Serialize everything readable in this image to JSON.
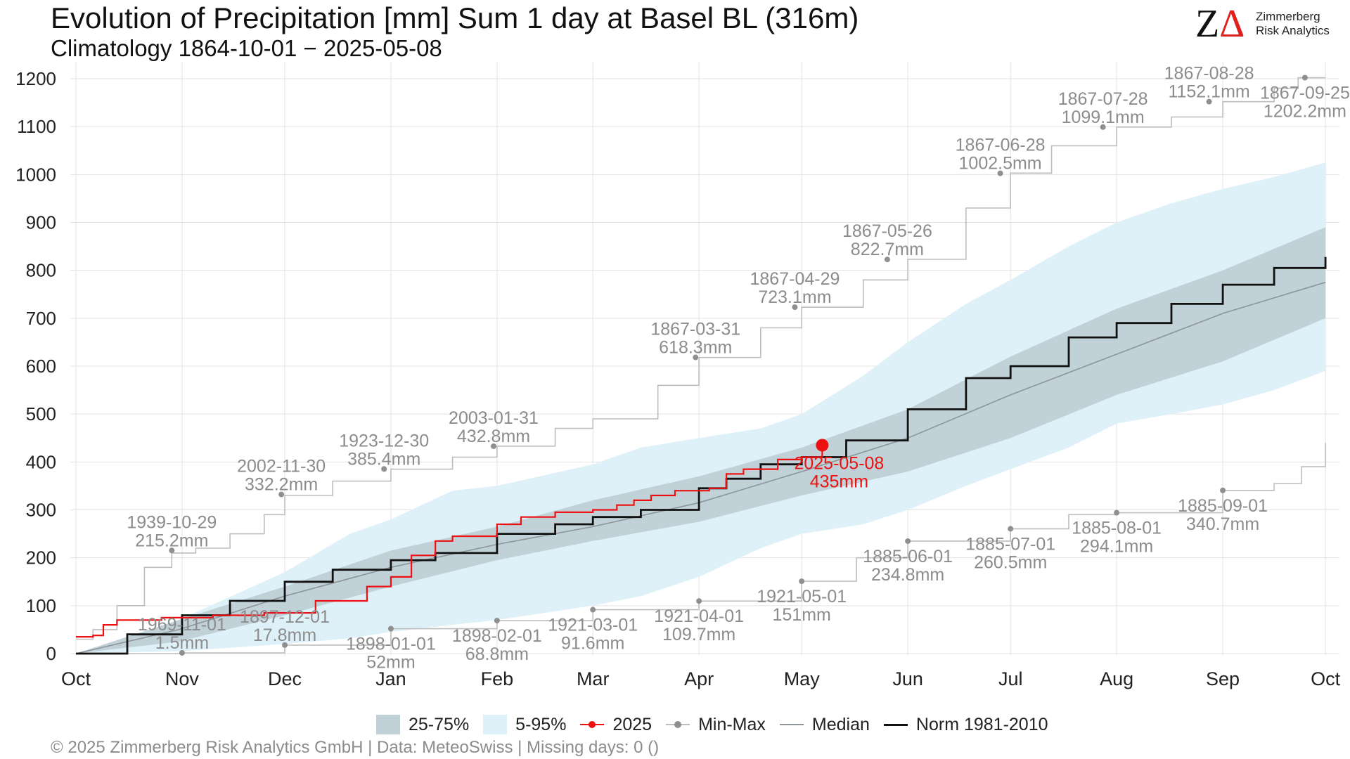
{
  "header": {
    "title": "Evolution of Precipitation [mm] Sum 1 day at Basel  BL (316m)",
    "subtitle": "Climatology 1864-10-01 − 2025-05-08"
  },
  "logo": {
    "mark_letter": "Z",
    "mark_delta": "Δ",
    "line1": "Zimmerberg",
    "line2": "Risk Analytics"
  },
  "colors": {
    "band_25_75": "#c1d1d8",
    "band_5_95": "#dff1f8",
    "current_year": "#ee1111",
    "minmax": "#bdbdbd",
    "minmax_marker": "#8f8f8f",
    "median": "#8d9599",
    "norm": "#111111",
    "label_gray": "#8c8c8c"
  },
  "legend": {
    "items": [
      {
        "label": "25-75%",
        "kind": "band1"
      },
      {
        "label": "5-95%",
        "kind": "band2"
      },
      {
        "label": "2025",
        "kind": "current"
      },
      {
        "label": "Min-Max",
        "kind": "minmax"
      },
      {
        "label": "Median",
        "kind": "median"
      },
      {
        "label": "Norm 1981-2010",
        "kind": "norm"
      }
    ]
  },
  "footer": "©  2025 Zimmerberg Risk Analytics GmbH | Data: MeteoSwiss | Missing days: 0 ()",
  "chart_data": {
    "type": "line",
    "x_unit": "days since Oct 1",
    "xlim": [
      0,
      366
    ],
    "ylim": [
      0,
      1200
    ],
    "y_ticks": [
      0,
      100,
      200,
      300,
      400,
      500,
      600,
      700,
      800,
      900,
      1000,
      1100,
      1200
    ],
    "x_ticks": [
      {
        "label": "Oct",
        "day": 0
      },
      {
        "label": "Nov",
        "day": 31
      },
      {
        "label": "Dec",
        "day": 61
      },
      {
        "label": "Jan",
        "day": 92
      },
      {
        "label": "Feb",
        "day": 123
      },
      {
        "label": "Mar",
        "day": 151
      },
      {
        "label": "Apr",
        "day": 182
      },
      {
        "label": "May",
        "day": 212
      },
      {
        "label": "Jun",
        "day": 243
      },
      {
        "label": "Jul",
        "day": 273
      },
      {
        "label": "Aug",
        "day": 304
      },
      {
        "label": "Sep",
        "day": 335
      },
      {
        "label": "Oct",
        "day": 365
      }
    ],
    "grid": true,
    "legend_position": "bottom",
    "series": [
      {
        "name": "5-95%",
        "kind": "band",
        "x": [
          0,
          30,
          61,
          80,
          92,
          110,
          123,
          151,
          165,
          182,
          200,
          212,
          230,
          243,
          260,
          273,
          290,
          304,
          320,
          335,
          350,
          365
        ],
        "lower": [
          0,
          5,
          20,
          32,
          45,
          60,
          70,
          100,
          120,
          160,
          220,
          250,
          270,
          300,
          350,
          385,
          430,
          480,
          500,
          520,
          550,
          590
        ],
        "upper": [
          0,
          70,
          170,
          250,
          280,
          340,
          350,
          395,
          430,
          450,
          470,
          500,
          580,
          650,
          730,
          780,
          850,
          900,
          940,
          970,
          995,
          1025
        ]
      },
      {
        "name": "25-75%",
        "kind": "band",
        "x": [
          0,
          30,
          61,
          92,
          123,
          151,
          182,
          212,
          243,
          273,
          304,
          335,
          365
        ],
        "lower": [
          0,
          25,
          80,
          140,
          195,
          235,
          275,
          330,
          380,
          450,
          540,
          610,
          700
        ],
        "upper": [
          0,
          70,
          140,
          215,
          265,
          320,
          370,
          430,
          510,
          620,
          720,
          800,
          890
        ]
      },
      {
        "name": "Median",
        "kind": "median",
        "x": [
          0,
          30,
          61,
          92,
          123,
          151,
          182,
          212,
          243,
          273,
          304,
          335,
          365
        ],
        "values": [
          0,
          50,
          120,
          180,
          228,
          265,
          315,
          380,
          450,
          540,
          625,
          710,
          775
        ]
      },
      {
        "name": "Norm 1981-2010",
        "kind": "norm",
        "x": [
          0,
          15,
          31,
          45,
          61,
          75,
          92,
          105,
          123,
          140,
          151,
          165,
          182,
          190,
          200,
          212,
          225,
          243,
          260,
          273,
          290,
          304,
          320,
          335,
          350,
          365
        ],
        "values": [
          0,
          40,
          80,
          110,
          150,
          175,
          195,
          210,
          250,
          270,
          285,
          300,
          345,
          365,
          395,
          410,
          445,
          510,
          575,
          600,
          660,
          690,
          730,
          770,
          805,
          828
        ]
      },
      {
        "name": "2025",
        "kind": "current",
        "x": [
          0,
          5,
          8,
          12,
          25,
          40,
          55,
          70,
          85,
          92,
          98,
          105,
          110,
          123,
          130,
          140,
          151,
          158,
          163,
          168,
          175,
          182,
          185,
          190,
          195,
          205,
          212,
          218
        ],
        "values": [
          35,
          38,
          60,
          70,
          75,
          80,
          85,
          110,
          140,
          160,
          205,
          235,
          245,
          270,
          285,
          295,
          300,
          310,
          320,
          330,
          340,
          340,
          345,
          375,
          385,
          405,
          410,
          435
        ],
        "end_label_date": "2025-05-08",
        "end_label_value": "435mm"
      },
      {
        "name": "Max",
        "kind": "max",
        "x": [
          0,
          5,
          12,
          20,
          28,
          35,
          45,
          55,
          61,
          75,
          92,
          110,
          123,
          140,
          151,
          170,
          182,
          200,
          212,
          230,
          243,
          260,
          273,
          285,
          304,
          320,
          335,
          350,
          357,
          365
        ],
        "values": [
          30,
          50,
          100,
          180,
          210,
          220,
          250,
          290,
          330,
          360,
          385,
          410,
          433,
          470,
          490,
          560,
          618,
          680,
          723,
          780,
          823,
          930,
          1003,
          1060,
          1099,
          1120,
          1152,
          1180,
          1202,
          1202
        ]
      },
      {
        "name": "Min",
        "kind": "min",
        "x": [
          0,
          31,
          61,
          92,
          123,
          151,
          182,
          212,
          228,
          243,
          273,
          290,
          304,
          335,
          350,
          358,
          365
        ],
        "values": [
          0,
          1.5,
          17.8,
          52,
          68.8,
          91.6,
          109.7,
          151,
          200,
          234.8,
          260.5,
          290,
          294.1,
          340.7,
          355,
          390,
          440
        ]
      }
    ],
    "annotations": [
      {
        "kind": "max",
        "day": 28,
        "value": 215.2,
        "date": "1939-10-29",
        "amount": "215.2mm",
        "pos": "above"
      },
      {
        "kind": "max",
        "day": 60,
        "value": 332.2,
        "date": "2002-11-30",
        "amount": "332.2mm",
        "pos": "above"
      },
      {
        "kind": "max",
        "day": 90,
        "value": 385.4,
        "date": "1923-12-30",
        "amount": "385.4mm",
        "pos": "above"
      },
      {
        "kind": "max",
        "day": 122,
        "value": 432.8,
        "date": "2003-01-31",
        "amount": "432.8mm",
        "pos": "above"
      },
      {
        "kind": "max",
        "day": 181,
        "value": 618.3,
        "date": "1867-03-31",
        "amount": "618.3mm",
        "pos": "above"
      },
      {
        "kind": "max",
        "day": 210,
        "value": 723.1,
        "date": "1867-04-29",
        "amount": "723.1mm",
        "pos": "above"
      },
      {
        "kind": "max",
        "day": 237,
        "value": 822.7,
        "date": "1867-05-26",
        "amount": "822.7mm",
        "pos": "above"
      },
      {
        "kind": "max",
        "day": 270,
        "value": 1002.5,
        "date": "1867-06-28",
        "amount": "1002.5mm",
        "pos": "above"
      },
      {
        "kind": "max",
        "day": 300,
        "value": 1099.1,
        "date": "1867-07-28",
        "amount": "1099.1mm",
        "pos": "above"
      },
      {
        "kind": "max",
        "day": 331,
        "value": 1152.1,
        "date": "1867-08-28",
        "amount": "1152.1mm",
        "pos": "above"
      },
      {
        "kind": "max",
        "day": 359,
        "value": 1202.2,
        "date": "1867-09-25",
        "amount": "1202.2mm",
        "pos": "below"
      },
      {
        "kind": "min",
        "day": 31,
        "value": 1.5,
        "date": "1969-11-01",
        "amount": "1.5mm",
        "pos": "above"
      },
      {
        "kind": "min",
        "day": 61,
        "value": 17.8,
        "date": "1897-12-01",
        "amount": "17.8mm",
        "pos": "above"
      },
      {
        "kind": "min",
        "day": 92,
        "value": 52,
        "date": "1898-01-01",
        "amount": "52mm",
        "pos": "below"
      },
      {
        "kind": "min",
        "day": 123,
        "value": 68.8,
        "date": "1898-02-01",
        "amount": "68.8mm",
        "pos": "below"
      },
      {
        "kind": "min",
        "day": 151,
        "value": 91.6,
        "date": "1921-03-01",
        "amount": "91.6mm",
        "pos": "below"
      },
      {
        "kind": "min",
        "day": 182,
        "value": 109.7,
        "date": "1921-04-01",
        "amount": "109.7mm",
        "pos": "below"
      },
      {
        "kind": "min",
        "day": 212,
        "value": 151,
        "date": "1921-05-01",
        "amount": "151mm",
        "pos": "below"
      },
      {
        "kind": "min",
        "day": 243,
        "value": 234.8,
        "date": "1885-06-01",
        "amount": "234.8mm",
        "pos": "below"
      },
      {
        "kind": "min",
        "day": 273,
        "value": 260.5,
        "date": "1885-07-01",
        "amount": "260.5mm",
        "pos": "below"
      },
      {
        "kind": "min",
        "day": 304,
        "value": 294.1,
        "date": "1885-08-01",
        "amount": "294.1mm",
        "pos": "below"
      },
      {
        "kind": "min",
        "day": 335,
        "value": 340.7,
        "date": "1885-09-01",
        "amount": "340.7mm",
        "pos": "below"
      }
    ]
  }
}
